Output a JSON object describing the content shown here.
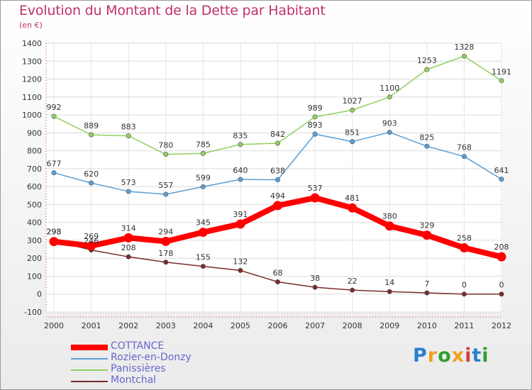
{
  "chart_data": {
    "type": "line",
    "title": "Evolution du Montant de la Dette par Habitant",
    "subtitle": "(en €)",
    "x": [
      "2000",
      "2001",
      "2002",
      "2003",
      "2004",
      "2005",
      "2006",
      "2007",
      "2008",
      "2009",
      "2010",
      "2011",
      "2012"
    ],
    "ylim": [
      -100,
      1400
    ],
    "yticks": [
      -100,
      0,
      100,
      200,
      300,
      400,
      500,
      600,
      700,
      800,
      900,
      1000,
      1100,
      1200,
      1300,
      1400
    ],
    "ytick_labels": [
      "-100",
      "0",
      "100",
      "200",
      "300",
      "400",
      "500",
      "600",
      "700",
      "800",
      "900",
      "1000",
      "1100",
      "1200",
      "1300",
      "1400"
    ],
    "grid": true,
    "legend_position": "bottom-left",
    "series": [
      {
        "name": "COTTANCE",
        "color": "#ff0000",
        "values": [
          293,
          269,
          314,
          294,
          345,
          391,
          494,
          537,
          481,
          380,
          329,
          258,
          208
        ],
        "labels": [
          "293",
          "269",
          "314",
          "294",
          "345",
          "391",
          "494",
          "537",
          "481",
          "380",
          "329",
          "258",
          "208"
        ]
      },
      {
        "name": "Rozier-en-Donzy",
        "color": "#5a9fd4",
        "values": [
          677,
          620,
          573,
          557,
          599,
          640,
          638,
          893,
          851,
          903,
          825,
          768,
          641
        ],
        "labels": [
          "677",
          "620",
          "573",
          "557",
          "599",
          "640",
          "638",
          "893",
          "851",
          "903",
          "825",
          "768",
          "641"
        ]
      },
      {
        "name": "Panissières",
        "color": "#90d060",
        "values": [
          992,
          889,
          883,
          780,
          785,
          835,
          842,
          989,
          1027,
          1100,
          1253,
          1328,
          1191
        ],
        "labels": [
          "992",
          "889",
          "883",
          "780",
          "785",
          "835",
          "842",
          "989",
          "1027",
          "1100",
          "1253",
          "1328",
          "1191"
        ]
      },
      {
        "name": "Montchal",
        "color": "#7a2a2a",
        "values": [
          298,
          246,
          208,
          178,
          155,
          132,
          68,
          38,
          22,
          14,
          7,
          0,
          0
        ],
        "labels": [
          "298",
          "246",
          "208",
          "178",
          "155",
          "132",
          "68",
          "38",
          "22",
          "14",
          "7",
          "0",
          "0"
        ]
      }
    ]
  },
  "logo": {
    "letters": [
      "P",
      "r",
      "o",
      "x",
      "i",
      "t",
      "i"
    ],
    "colors": [
      "#2a7fd0",
      "#f0a020",
      "#30a030",
      "#f0a020",
      "#d04040",
      "#2a7fd0",
      "#30a030"
    ]
  }
}
